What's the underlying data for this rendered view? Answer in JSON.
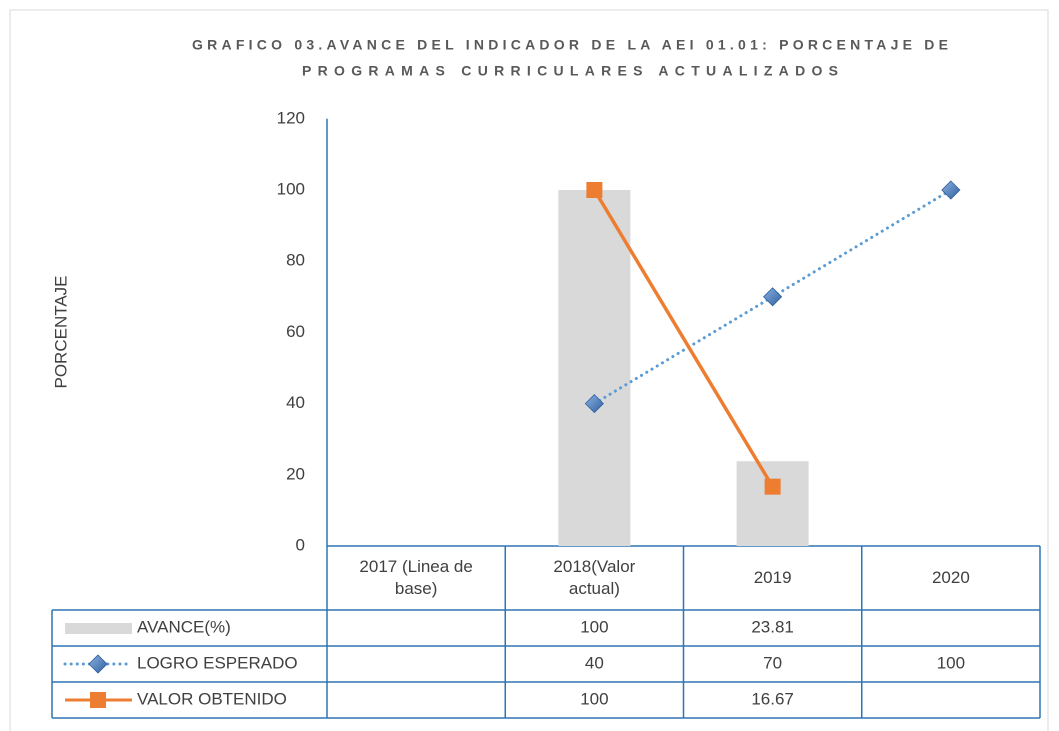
{
  "chart_data": {
    "type": "combo",
    "title": [
      "GRAFICO 03.AVANCE DEL INDICADOR DE LA AEI 01.01: PORCENTAJE DE",
      "PROGRAMAS CURRICULARES ACTUALIZADOS"
    ],
    "y_label": "PORCENTAJE",
    "categories": [
      "2017 (Linea de base)",
      "2018(Valor actual)",
      "2019",
      "2020"
    ],
    "series": [
      {
        "name": "AVANCE(%)",
        "type": "bar",
        "color": "#d9d9d9",
        "values": [
          null,
          100,
          23.81,
          null
        ]
      },
      {
        "name": "LOGRO ESPERADO",
        "type": "line",
        "style": "dotted",
        "marker": "diamond",
        "color": "#5b9bd5",
        "values": [
          null,
          40,
          70,
          100
        ]
      },
      {
        "name": "VALOR OBTENIDO",
        "type": "line",
        "style": "solid",
        "marker": "square",
        "color": "#ed7d31",
        "values": [
          null,
          100,
          16.67,
          null
        ]
      }
    ],
    "ylim": [
      0,
      120
    ],
    "yticks": [
      0,
      20,
      40,
      60,
      80,
      100,
      120
    ],
    "grid": false,
    "data_table": true
  }
}
